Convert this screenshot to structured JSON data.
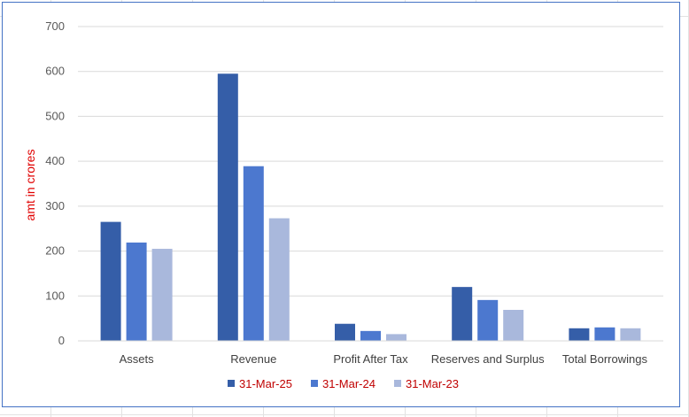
{
  "chart_data": {
    "type": "bar",
    "categories": [
      "Assets",
      "Revenue",
      "Profit After Tax",
      "Reserves and Surplus",
      "Total Borrowings"
    ],
    "series": [
      {
        "name": "31-Mar-25",
        "color": "#355ea8",
        "values": [
          265,
          595,
          38,
          120,
          28
        ]
      },
      {
        "name": "31-Mar-24",
        "color": "#4c78cf",
        "values": [
          219,
          389,
          22,
          91,
          30
        ]
      },
      {
        "name": "31-Mar-23",
        "color": "#a9b8dc",
        "values": [
          205,
          273,
          15,
          69,
          28
        ]
      }
    ],
    "ylabel": "amt in crores",
    "xlabel": "",
    "ylim": [
      0,
      700
    ],
    "yticks": [
      "0",
      "100",
      "200",
      "300",
      "400",
      "500",
      "600",
      "700"
    ],
    "grid": true,
    "legend_position": "bottom"
  },
  "colors": {
    "frame_border": "#4472c4",
    "gridline": "#d9d9d9",
    "axis_title": "#e00000",
    "legend_text": "#c00000"
  }
}
